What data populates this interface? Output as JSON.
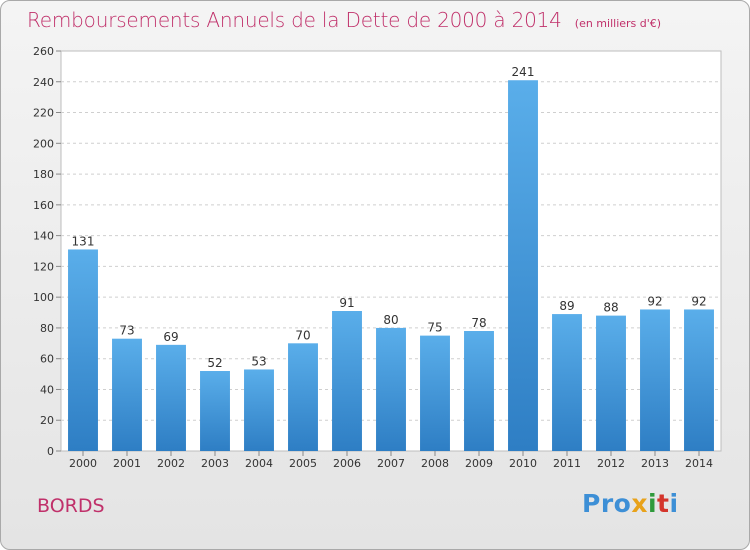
{
  "header": {
    "title": "Remboursements Annuels de la Dette de 2000 à 2014",
    "unit": "(en milliers d'€)"
  },
  "footer": {
    "place": "BORDS",
    "logo": [
      "Pro",
      "x",
      "i",
      "t",
      "i"
    ]
  },
  "colors": {
    "bar_top": "#5aaeea",
    "bar_bottom": "#2e7ec4",
    "title": "#c0306a",
    "grid": "#cfcfcf"
  },
  "chart_data": {
    "type": "bar",
    "title": "Remboursements Annuels de la Dette de 2000 à 2014",
    "subtitle": "(en milliers d'€)",
    "xlabel": "",
    "ylabel": "",
    "categories": [
      "2000",
      "2001",
      "2002",
      "2003",
      "2004",
      "2005",
      "2006",
      "2007",
      "2008",
      "2009",
      "2010",
      "2011",
      "2012",
      "2013",
      "2014"
    ],
    "values": [
      131,
      73,
      69,
      52,
      53,
      70,
      91,
      80,
      75,
      78,
      241,
      89,
      88,
      92,
      92
    ],
    "data_labels": [
      "131",
      "73",
      "69",
      "52",
      "53",
      "70",
      "91",
      "80",
      "75",
      "78",
      "241",
      "89",
      "88",
      "92",
      "92"
    ],
    "ylim": [
      0,
      260
    ],
    "yticks": [
      0,
      20,
      40,
      60,
      80,
      100,
      120,
      140,
      160,
      180,
      200,
      220,
      240,
      260
    ],
    "grid": true,
    "legend": "none"
  }
}
